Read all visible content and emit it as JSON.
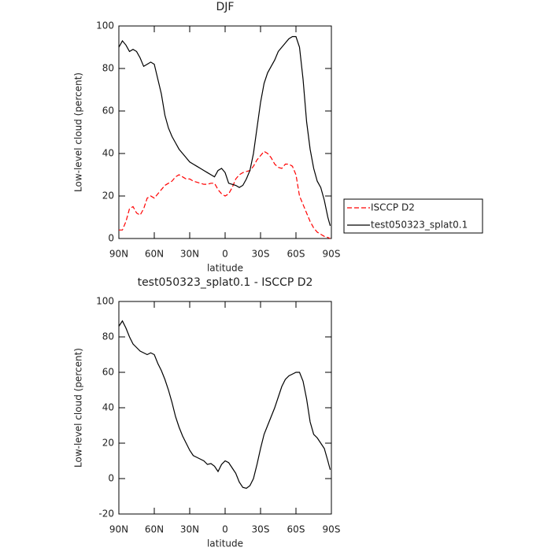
{
  "chart_data": [
    {
      "type": "line",
      "title": "DJF",
      "x_label": "latitude",
      "y_label": "Low-level cloud (percent)",
      "x": [
        90,
        87,
        84,
        81,
        78,
        75,
        72,
        69,
        66,
        63,
        60,
        57,
        54,
        51,
        48,
        45,
        42,
        39,
        36,
        33,
        30,
        27,
        24,
        21,
        18,
        15,
        12,
        9,
        6,
        3,
        0,
        -3,
        -6,
        -9,
        -12,
        -15,
        -18,
        -21,
        -24,
        -27,
        -30,
        -33,
        -36,
        -39,
        -42,
        -45,
        -48,
        -51,
        -54,
        -57,
        -60,
        -63,
        -66,
        -69,
        -72,
        -75,
        -78,
        -81,
        -84,
        -87,
        -89
      ],
      "series": [
        {
          "name": "ISCCP D2",
          "color": "#ff0000",
          "dashed": true,
          "values": [
            4,
            4,
            8,
            14,
            15,
            12,
            11,
            14,
            19,
            20,
            19,
            21,
            23,
            25,
            26,
            27,
            29,
            30,
            29,
            28,
            28,
            27,
            26.5,
            26,
            25.5,
            25.5,
            26,
            26,
            23,
            21,
            20,
            21,
            24,
            28,
            30,
            31,
            31.5,
            32,
            34,
            37,
            39,
            41,
            40,
            38,
            35,
            33.5,
            33,
            35,
            35,
            34,
            30,
            20,
            16,
            12,
            8,
            5,
            3,
            2,
            1,
            0.5,
            0
          ]
        },
        {
          "name": "test050323_splat0.1",
          "color": "#000000",
          "dashed": false,
          "values": [
            90,
            93,
            91,
            88,
            89,
            88,
            85,
            81,
            82,
            83,
            82,
            75,
            68,
            58,
            52,
            48,
            45,
            42,
            40,
            38,
            36,
            35,
            34,
            33,
            32,
            31,
            30,
            29,
            32,
            33,
            31,
            26,
            25.5,
            25,
            24,
            25,
            28,
            32,
            40,
            52,
            64,
            73,
            78,
            81,
            84,
            88,
            90,
            92,
            94,
            95,
            95,
            90,
            75,
            55,
            42,
            33,
            27,
            24,
            18,
            10,
            6
          ]
        }
      ],
      "xlim": [
        90,
        -90
      ],
      "xticks": [
        {
          "value": 90,
          "label": "90N"
        },
        {
          "value": 60,
          "label": "60N"
        },
        {
          "value": 30,
          "label": "30N"
        },
        0,
        {
          "value": -30,
          "label": "30S"
        },
        {
          "value": -60,
          "label": "60S"
        },
        {
          "value": -90,
          "label": "90S"
        }
      ],
      "ylim": [
        0,
        100
      ],
      "yticks": [
        0,
        20,
        40,
        60,
        80,
        100
      ],
      "legend": "right"
    },
    {
      "type": "line",
      "title": "test050323_splat0.1 - ISCCP D2",
      "x_label": "latitude",
      "y_label": "Low-level cloud (percent)",
      "x": [
        90,
        87,
        84,
        81,
        78,
        75,
        72,
        69,
        66,
        63,
        60,
        57,
        54,
        51,
        48,
        45,
        42,
        39,
        36,
        33,
        30,
        27,
        24,
        21,
        18,
        15,
        12,
        9,
        6,
        3,
        0,
        -3,
        -6,
        -9,
        -12,
        -15,
        -18,
        -21,
        -24,
        -27,
        -30,
        -33,
        -36,
        -39,
        -42,
        -45,
        -48,
        -51,
        -54,
        -57,
        -60,
        -63,
        -66,
        -69,
        -72,
        -75,
        -78,
        -81,
        -84,
        -87,
        -89
      ],
      "series": [
        {
          "color": "#000000",
          "dashed": false,
          "values": [
            86,
            89,
            85,
            80,
            76,
            74,
            72,
            71,
            70,
            71,
            70,
            65,
            61,
            56,
            50,
            43,
            35,
            29,
            24,
            20,
            16,
            13,
            12,
            11,
            10,
            8,
            8.5,
            7,
            4,
            8,
            10,
            9,
            6,
            3,
            -2,
            -5,
            -5.5,
            -4,
            0,
            8,
            17,
            25,
            30,
            35,
            40,
            46,
            52,
            56,
            58,
            59,
            60,
            60,
            55,
            45,
            32,
            25,
            23,
            20,
            17,
            10,
            5
          ]
        }
      ],
      "xlim": [
        90,
        -90
      ],
      "xticks": [
        {
          "value": 90,
          "label": "90N"
        },
        {
          "value": 60,
          "label": "60N"
        },
        {
          "value": 30,
          "label": "30N"
        },
        0,
        {
          "value": -30,
          "label": "30S"
        },
        {
          "value": -60,
          "label": "60S"
        },
        {
          "value": -90,
          "label": "90S"
        }
      ],
      "ylim": [
        -20,
        100
      ],
      "yticks": [
        -20,
        0,
        20,
        40,
        60,
        80,
        100
      ]
    }
  ]
}
